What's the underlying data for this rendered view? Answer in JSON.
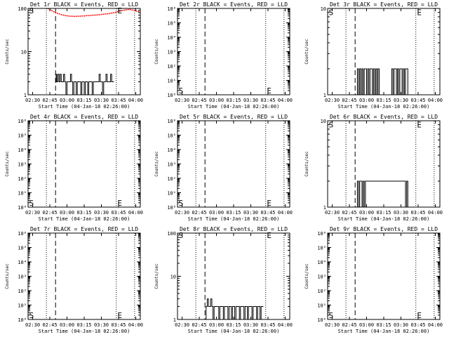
{
  "colors": {
    "background": "#ffffff",
    "events": "#000000",
    "lld": "#ff0000"
  },
  "chart_data": [
    {
      "type": "line",
      "title": "Det 1r BLACK = Events, RED = LLD",
      "xlabel": "Start Time (04-Jan-18 02:26:00)",
      "ylabel": "Counts/sec",
      "y_scale": "log",
      "ylim": [
        1,
        100
      ],
      "y_tick_labels": [
        "1",
        "10",
        "100"
      ],
      "x_tick_labels": [
        "02:30",
        "02:45",
        "03:00",
        "03:15",
        "03:30",
        "03:45",
        "04:00"
      ],
      "xlim_minutes": [
        0,
        98
      ],
      "dotted_lines_min": [
        16,
        77,
        93
      ],
      "dashed_line_min": 24,
      "markers": [
        {
          "text": "S",
          "x_min": 1,
          "y": 90
        },
        {
          "text": "E",
          "x_min": 78,
          "y": 90
        }
      ],
      "series": [
        {
          "name": "Events",
          "color": "#000000",
          "x_min": [
            24,
            24.5,
            25,
            26,
            27,
            28,
            29,
            30,
            31,
            32,
            33,
            34,
            35,
            36,
            37,
            38,
            39,
            40,
            41,
            42,
            43,
            44,
            45,
            46,
            47,
            48,
            49,
            50,
            51,
            52,
            53,
            54,
            55,
            56,
            57,
            58,
            59,
            60,
            61,
            62,
            63,
            64,
            65,
            66,
            67,
            68,
            69,
            70,
            71,
            72,
            73,
            74,
            75
          ],
          "y": [
            2,
            3,
            2,
            3,
            2,
            3,
            2,
            2,
            3,
            2,
            1,
            2,
            2,
            2,
            3,
            2,
            1,
            2,
            2,
            1,
            2,
            2,
            2,
            1,
            2,
            2,
            1,
            2,
            2,
            1,
            2,
            2,
            2,
            1,
            2,
            2,
            2,
            2,
            2,
            3,
            2,
            2,
            1,
            2,
            2,
            3,
            2,
            2,
            2,
            3,
            2,
            2,
            2
          ]
        },
        {
          "name": "LLD",
          "color": "#ff0000",
          "x_min": [
            17,
            19,
            21,
            23,
            25,
            27,
            29,
            31,
            33,
            35,
            37,
            39,
            41,
            43,
            45,
            47,
            49,
            51,
            53,
            55,
            57,
            59,
            61,
            63,
            65,
            67,
            69,
            71,
            73,
            75,
            77,
            79,
            81,
            83,
            85,
            87,
            89,
            91,
            93,
            95,
            97
          ],
          "y": [
            100,
            95,
            88,
            82,
            78,
            75,
            72,
            70,
            68,
            67,
            66,
            66,
            65,
            66,
            66,
            67,
            67,
            68,
            68,
            69,
            70,
            70,
            71,
            72,
            73,
            74,
            75,
            76,
            78,
            80,
            82,
            85,
            88,
            90,
            92,
            94,
            95,
            92,
            90,
            86,
            84
          ]
        }
      ]
    },
    {
      "type": "line",
      "title": "Det 2r BLACK = Events, RED = LLD",
      "xlabel": "Start Time (04-Jan-18 02:26:00)",
      "ylabel": "Counts/sec",
      "y_scale": "log",
      "ylim": [
        1,
        1000000
      ],
      "y_tick_labels": [
        "10⁰",
        "10¹",
        "10²",
        "10³",
        "10⁴",
        "10⁵",
        "10⁶"
      ],
      "x_tick_labels": [
        "02:30",
        "02:45",
        "03:00",
        "03:15",
        "03:30",
        "03:45",
        "04:00"
      ],
      "xlim_minutes": [
        0,
        98
      ],
      "dotted_lines_min": [
        16,
        77,
        93
      ],
      "dashed_line_min": 24,
      "markers": [
        {
          "text": "S",
          "x_min": 1,
          "y": 2
        },
        {
          "text": "E",
          "x_min": 78,
          "y": 2
        }
      ],
      "series": []
    },
    {
      "type": "line",
      "title": "Det 3r BLACK = Events, RED = LLD",
      "xlabel": "Start Time (04-Jan-18 02:26:00)",
      "ylabel": "Counts/sec",
      "y_scale": "log",
      "ylim": [
        1,
        10
      ],
      "y_tick_labels": [
        "1",
        "10"
      ],
      "x_tick_labels": [
        "02:30",
        "02:45",
        "03:00",
        "03:15",
        "03:30",
        "03:45",
        "04:00"
      ],
      "xlim_minutes": [
        0,
        98
      ],
      "dotted_lines_min": [
        16,
        77,
        93
      ],
      "dashed_line_min": 24,
      "markers": [
        {
          "text": "S",
          "x_min": 1,
          "y": 9
        },
        {
          "text": "E",
          "x_min": 78,
          "y": 9
        }
      ],
      "series": [
        {
          "name": "Events",
          "color": "#000000",
          "x_min": [
            25,
            26,
            27,
            28,
            29,
            30,
            31,
            32,
            33,
            34,
            35,
            36,
            37,
            38,
            39,
            40,
            41,
            42,
            43,
            44,
            45,
            55,
            56,
            57,
            58,
            59,
            60,
            61,
            62,
            63,
            64,
            65,
            66,
            67,
            68,
            69,
            70
          ],
          "y": [
            1,
            2,
            1,
            2,
            1,
            2,
            1,
            2,
            2,
            1,
            2,
            1,
            2,
            2,
            1,
            2,
            1,
            2,
            1,
            2,
            1,
            1,
            2,
            1,
            2,
            2,
            1,
            2,
            1,
            2,
            2,
            1,
            2,
            1,
            2,
            2,
            1
          ]
        }
      ]
    },
    {
      "type": "line",
      "title": "Det 4r BLACK = Events, RED = LLD",
      "xlabel": "Start Time (04-Jan-18 02:26:00)",
      "ylabel": "Counts/sec",
      "y_scale": "log",
      "ylim": [
        1,
        1000000
      ],
      "y_tick_labels": [
        "10⁰",
        "10¹",
        "10²",
        "10³",
        "10⁴",
        "10⁵",
        "10⁶"
      ],
      "x_tick_labels": [
        "02:30",
        "02:45",
        "03:00",
        "03:15",
        "03:30",
        "03:45",
        "04:00"
      ],
      "xlim_minutes": [
        0,
        98
      ],
      "dotted_lines_min": [
        16,
        77,
        93
      ],
      "dashed_line_min": 24,
      "markers": [
        {
          "text": "S",
          "x_min": 1,
          "y": 2
        },
        {
          "text": "E",
          "x_min": 78,
          "y": 2
        }
      ],
      "series": []
    },
    {
      "type": "line",
      "title": "Det 5r BLACK = Events, RED = LLD",
      "xlabel": "Start Time (04-Jan-18 02:26:00)",
      "ylabel": "Counts/sec",
      "y_scale": "log",
      "ylim": [
        1,
        1000000
      ],
      "y_tick_labels": [
        "10⁰",
        "10¹",
        "10²",
        "10³",
        "10⁴",
        "10⁵",
        "10⁶"
      ],
      "x_tick_labels": [
        "02:30",
        "02:45",
        "03:00",
        "03:15",
        "03:30",
        "03:45",
        "04:00"
      ],
      "xlim_minutes": [
        0,
        98
      ],
      "dotted_lines_min": [
        16,
        77,
        93
      ],
      "dashed_line_min": 24,
      "markers": [
        {
          "text": "S",
          "x_min": 1,
          "y": 2
        },
        {
          "text": "E",
          "x_min": 78,
          "y": 2
        }
      ],
      "series": []
    },
    {
      "type": "line",
      "title": "Det 6r BLACK = Events, RED = LLD",
      "xlabel": "Start Time (04-Jan-18 02:26:00)",
      "ylabel": "Counts/sec",
      "y_scale": "log",
      "ylim": [
        1,
        10
      ],
      "y_tick_labels": [
        "1",
        "10"
      ],
      "x_tick_labels": [
        "02:30",
        "02:45",
        "03:00",
        "03:15",
        "03:30",
        "03:45",
        "04:00"
      ],
      "xlim_minutes": [
        0,
        98
      ],
      "dotted_lines_min": [
        16,
        77,
        93
      ],
      "dashed_line_min": 24,
      "markers": [
        {
          "text": "S",
          "x_min": 1,
          "y": 9
        },
        {
          "text": "E",
          "x_min": 78,
          "y": 9
        }
      ],
      "series": [
        {
          "name": "Events",
          "color": "#000000",
          "x_min": [
            25,
            26,
            27,
            28,
            29,
            30,
            31,
            32,
            33,
            68,
            69,
            70
          ],
          "y": [
            1,
            2,
            1,
            2,
            2,
            1,
            2,
            1,
            2,
            1,
            2,
            1
          ]
        }
      ]
    },
    {
      "type": "line",
      "title": "Det 7r BLACK = Events, RED = LLD",
      "xlabel": "Start Time (04-Jan-18 02:26:00)",
      "ylabel": "Counts/sec",
      "y_scale": "log",
      "ylim": [
        1,
        1000000
      ],
      "y_tick_labels": [
        "10⁰",
        "10¹",
        "10²",
        "10³",
        "10⁴",
        "10⁵",
        "10⁶"
      ],
      "x_tick_labels": [
        "02:30",
        "02:45",
        "03:00",
        "03:15",
        "03:30",
        "03:45",
        "04:00"
      ],
      "xlim_minutes": [
        0,
        98
      ],
      "dotted_lines_min": [
        16,
        77,
        93
      ],
      "dashed_line_min": 24,
      "markers": [
        {
          "text": "S",
          "x_min": 1,
          "y": 2
        },
        {
          "text": "E",
          "x_min": 78,
          "y": 2
        }
      ],
      "series": []
    },
    {
      "type": "line",
      "title": "Det 8r BLACK = Events, RED = LLD",
      "xlabel": "Start Time (04-Jan-18 02:26:00)",
      "ylabel": "Counts/sec",
      "y_scale": "log",
      "ylim": [
        1,
        100
      ],
      "y_tick_labels": [
        "1",
        "10",
        "100"
      ],
      "x_tick_labels": [
        "02:30",
        "02:45",
        "03:00",
        "03:15",
        "03:30",
        "03:45",
        "04:00"
      ],
      "xlim_minutes": [
        0,
        98
      ],
      "dotted_lines_min": [
        16,
        77,
        93
      ],
      "dashed_line_min": 24,
      "markers": [
        {
          "text": "S",
          "x_min": 1,
          "y": 90
        },
        {
          "text": "E",
          "x_min": 78,
          "y": 90
        }
      ],
      "series": [
        {
          "name": "Events",
          "color": "#000000",
          "x_min": [
            24,
            25,
            26,
            27,
            28,
            29,
            30,
            31,
            32,
            33,
            34,
            35,
            36,
            37,
            38,
            39,
            40,
            41,
            42,
            43,
            44,
            45,
            46,
            47,
            48,
            49,
            50,
            51,
            52,
            53,
            54,
            55,
            56,
            57,
            58,
            59,
            60,
            61,
            62,
            63,
            64,
            65,
            66,
            67,
            68,
            69,
            70,
            71,
            72,
            73,
            74,
            75
          ],
          "y": [
            1,
            2,
            3,
            2,
            2,
            3,
            2,
            1,
            2,
            2,
            2,
            2,
            1,
            2,
            2,
            2,
            1,
            2,
            2,
            2,
            1,
            2,
            2,
            1,
            2,
            2,
            1,
            2,
            2,
            2,
            1,
            2,
            2,
            2,
            1,
            2,
            2,
            1,
            2,
            2,
            2,
            1,
            2,
            2,
            2,
            1,
            2,
            2,
            1,
            2,
            2,
            2
          ]
        }
      ]
    },
    {
      "type": "line",
      "title": "Det 9r BLACK = Events, RED = LLD",
      "xlabel": "Start Time (04-Jan-18 02:26:00)",
      "ylabel": "Counts/sec",
      "y_scale": "log",
      "ylim": [
        1,
        1000000
      ],
      "y_tick_labels": [
        "10⁰",
        "10¹",
        "10²",
        "10³",
        "10⁴",
        "10⁵",
        "10⁶"
      ],
      "x_tick_labels": [
        "02:30",
        "02:45",
        "03:00",
        "03:15",
        "03:30",
        "03:45",
        "04:00"
      ],
      "xlim_minutes": [
        0,
        98
      ],
      "dotted_lines_min": [
        16,
        77,
        93
      ],
      "dashed_line_min": 24,
      "markers": [
        {
          "text": "S",
          "x_min": 1,
          "y": 2
        },
        {
          "text": "E",
          "x_min": 78,
          "y": 2
        }
      ],
      "series": []
    }
  ]
}
